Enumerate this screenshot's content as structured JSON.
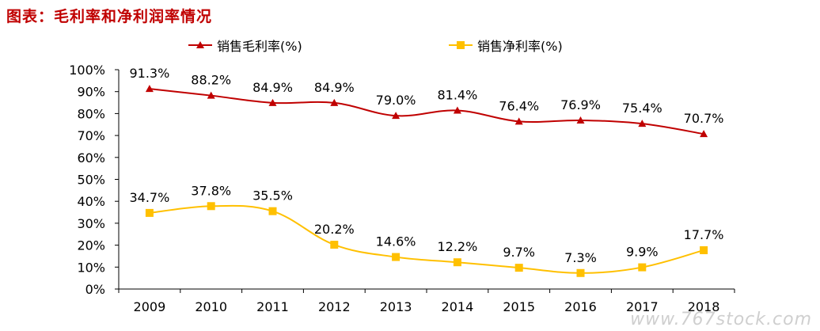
{
  "page_title": "图表：毛利率和净利润率情况",
  "watermark": "www.767stock.com",
  "chart_data": {
    "type": "line",
    "categories": [
      "2009",
      "2010",
      "2011",
      "2012",
      "2013",
      "2014",
      "2015",
      "2016",
      "2017",
      "2018"
    ],
    "ylim": [
      0,
      100
    ],
    "yticks": [
      "0%",
      "10%",
      "20%",
      "30%",
      "40%",
      "50%",
      "60%",
      "70%",
      "80%",
      "90%",
      "100%"
    ],
    "grid": false,
    "legend_position": "top",
    "series": [
      {
        "name": "销售毛利率(%)",
        "color": "#c00000",
        "marker": "triangle",
        "values": [
          91.3,
          88.2,
          84.9,
          84.9,
          79.0,
          81.4,
          76.4,
          76.9,
          75.4,
          70.7
        ],
        "labels": [
          "91.3%",
          "88.2%",
          "84.9%",
          "84.9%",
          "79.0%",
          "81.4%",
          "76.4%",
          "76.9%",
          "75.4%",
          "70.7%"
        ]
      },
      {
        "name": "销售净利率(%)",
        "color": "#ffc000",
        "marker": "square",
        "values": [
          34.7,
          37.8,
          35.5,
          20.2,
          14.6,
          12.2,
          9.7,
          7.3,
          9.9,
          17.7
        ],
        "labels": [
          "34.7%",
          "37.8%",
          "35.5%",
          "20.2%",
          "14.6%",
          "12.2%",
          "9.7%",
          "7.3%",
          "9.9%",
          "17.7%"
        ]
      }
    ]
  }
}
